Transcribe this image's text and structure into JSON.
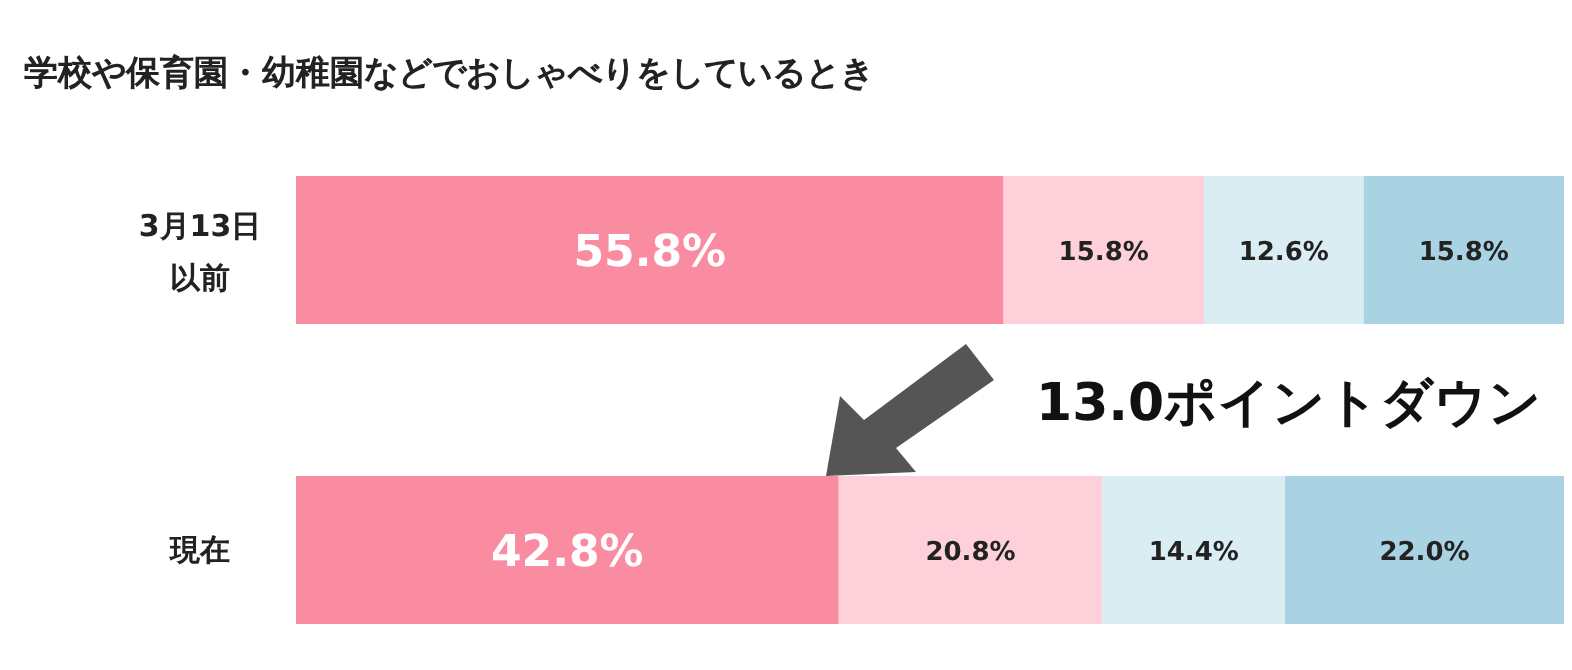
{
  "chart_data": {
    "type": "bar",
    "orientation": "horizontal",
    "stacked": true,
    "title": "学校や保育園・幼稚園などでおしゃべりをしているとき",
    "categories": [
      "3月13日以前",
      "現在"
    ],
    "series": [
      {
        "color": "#f98ca0",
        "values": [
          55.8,
          42.8
        ],
        "value_labels": [
          "55.8%",
          "42.8%"
        ]
      },
      {
        "color": "#fdd0da",
        "values": [
          15.8,
          20.8
        ],
        "value_labels": [
          "15.8%",
          "20.8%"
        ]
      },
      {
        "color": "#d9edf3",
        "values": [
          12.6,
          14.4
        ],
        "value_labels": [
          "12.6%",
          "14.4%"
        ]
      },
      {
        "color": "#a9d3e3",
        "values": [
          15.8,
          22.0
        ],
        "value_labels": [
          "15.8%",
          "22.0%"
        ]
      }
    ],
    "annotations": [
      "13.0ポイントダウン"
    ]
  }
}
